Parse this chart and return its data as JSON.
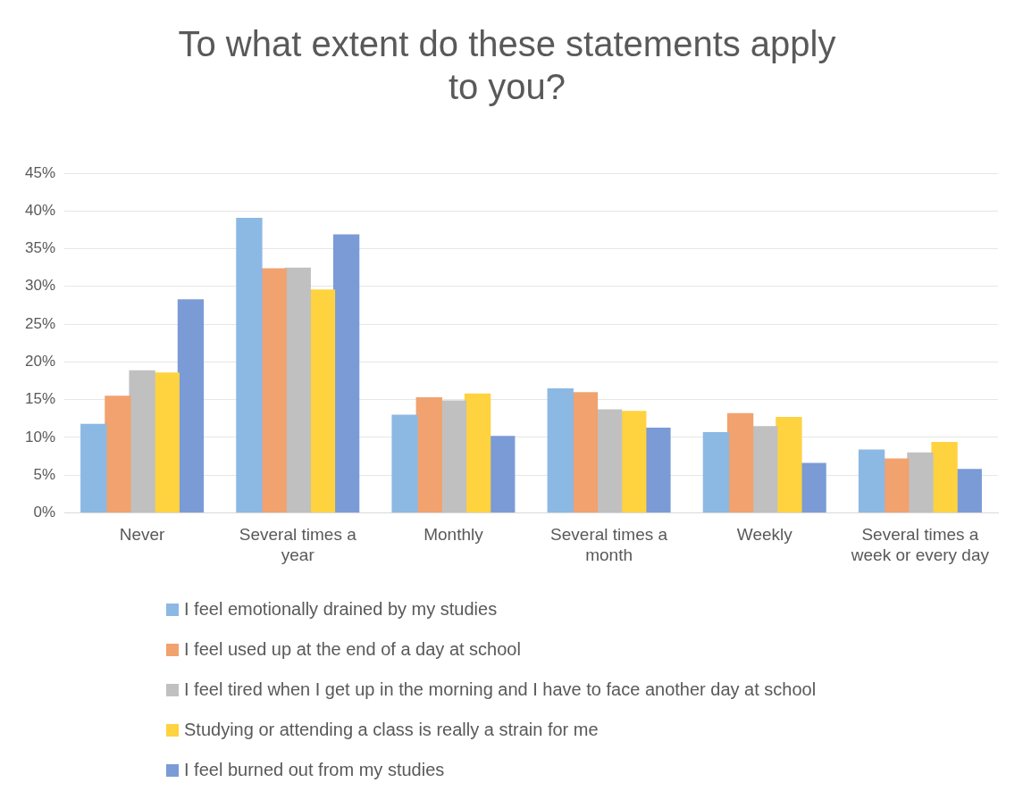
{
  "chart_data": {
    "type": "bar",
    "title": "To what extent do these statements apply to you?",
    "categories": [
      "Never",
      "Several times a year",
      "Monthly",
      "Several times a month",
      "Weekly",
      "Several times a week or every day"
    ],
    "series": [
      {
        "name": "I feel emotionally drained by my studies",
        "color": "#8cb8e4",
        "values": [
          11.8,
          39.1,
          13.0,
          16.5,
          10.7,
          8.4
        ]
      },
      {
        "name": "I feel used up at the end of a day at school",
        "color": "#f1a26e",
        "values": [
          15.5,
          32.4,
          15.3,
          16.0,
          13.2,
          7.2
        ]
      },
      {
        "name": "I feel tired when I get up in the morning and I have to face another day at school",
        "color": "#c0c0c0",
        "values": [
          18.9,
          32.5,
          14.9,
          13.7,
          11.5,
          8.0
        ]
      },
      {
        "name": "Studying or attending a class is really a strain for me",
        "color": "#ffd23f",
        "values": [
          18.6,
          29.6,
          15.8,
          13.5,
          12.7,
          9.4
        ]
      },
      {
        "name": "I feel burned out from my studies",
        "color": "#7b9bd7",
        "values": [
          28.3,
          36.9,
          10.2,
          11.3,
          6.6,
          5.8
        ]
      }
    ],
    "ylim": [
      0,
      45
    ],
    "yticks": [
      {
        "value": 0,
        "label": "0%"
      },
      {
        "value": 5,
        "label": "5%"
      },
      {
        "value": 10,
        "label": "10%"
      },
      {
        "value": 15,
        "label": "15%"
      },
      {
        "value": 20,
        "label": "20%"
      },
      {
        "value": 25,
        "label": "25%"
      },
      {
        "value": 30,
        "label": "30%"
      },
      {
        "value": 35,
        "label": "35%"
      },
      {
        "value": 40,
        "label": "40%"
      },
      {
        "value": 45,
        "label": "45%"
      }
    ],
    "grid": "y",
    "legend": "bottom"
  }
}
